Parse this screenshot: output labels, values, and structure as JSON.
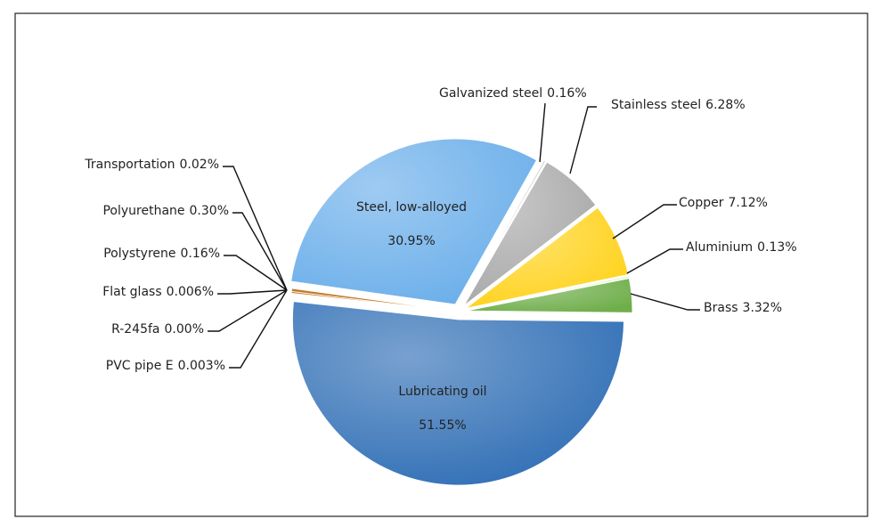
{
  "chart_data": {
    "type": "pie",
    "categories": [
      "Steel, low-alloyed",
      "Galvanized steel",
      "Stainless steel",
      "Copper",
      "Aluminium",
      "Brass",
      "Lubricating oil",
      "PVC pipe E",
      "R-245fa",
      "Flat glass",
      "Polystyrene",
      "Polyurethane",
      "Transportation"
    ],
    "values": [
      30.95,
      0.16,
      6.28,
      7.12,
      0.13,
      3.32,
      51.55,
      0.003,
      0,
      0.006,
      0.16,
      0.3,
      0.02
    ],
    "value_labels": [
      "30.95%",
      "0.16%",
      "6.28%",
      "7.12%",
      "0.13%",
      "3.32%",
      "51.55%",
      "0.003%",
      "0.00%",
      "0.006%",
      "0.16%",
      "0.30%",
      "0.02%"
    ],
    "colors": [
      "#6aaeea",
      "#d0d0d0",
      "#a8a8a8",
      "#ffd21a",
      "#c9f0a6",
      "#6fae4a",
      "#2f6eb5",
      "#c47a2a",
      "#c47a2a",
      "#c47a2a",
      "#c47a2a",
      "#c47a2a",
      "#c47a2a"
    ]
  }
}
